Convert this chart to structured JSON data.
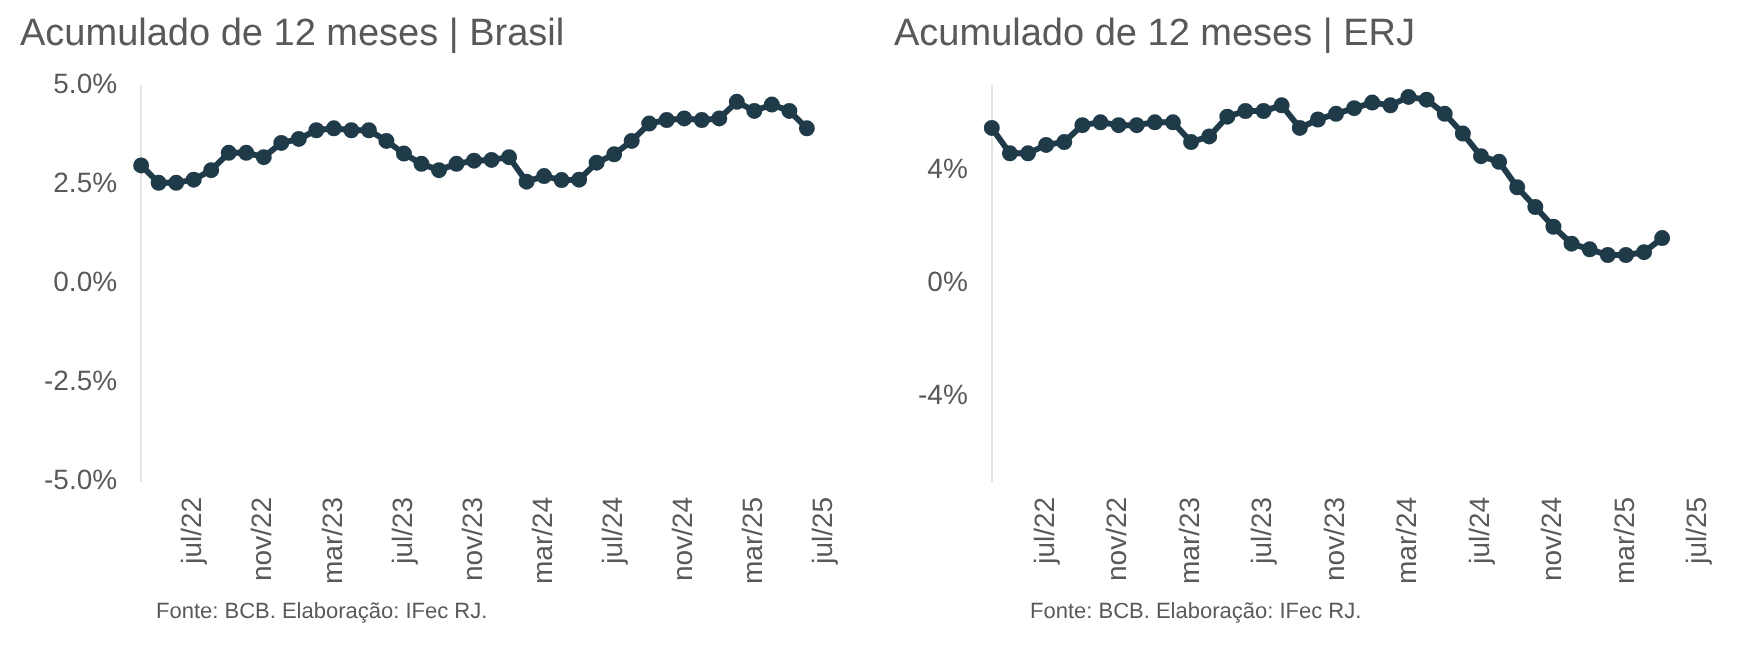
{
  "chart_data": [
    {
      "type": "line",
      "title": "Acumulado de 12 meses | Brasil",
      "categories": [
        null,
        null,
        null,
        "jul/22",
        null,
        null,
        null,
        "nov/22",
        null,
        null,
        null,
        "mar/23",
        null,
        null,
        null,
        "jul/23",
        null,
        null,
        null,
        "nov/23",
        null,
        null,
        null,
        "mar/24",
        null,
        null,
        null,
        "jul/24",
        null,
        null,
        null,
        "nov/24",
        null,
        null,
        null,
        "mar/25",
        null,
        null,
        null,
        "jul/25"
      ],
      "series": [
        {
          "color": "#1f3a48",
          "values": [
            2.98,
            2.54,
            2.54,
            2.62,
            2.86,
            3.3,
            3.3,
            3.19,
            3.55,
            3.65,
            3.87,
            3.92,
            3.87,
            3.87,
            3.6,
            3.28,
            3.02,
            2.86,
            3.02,
            3.1,
            3.12,
            3.19,
            2.57,
            2.71,
            2.61,
            2.62,
            3.05,
            3.26,
            3.6,
            4.04,
            4.13,
            4.17,
            4.13,
            4.17,
            4.59,
            4.36,
            4.52,
            4.36,
            3.92,
            null
          ]
        }
      ],
      "ylim": [
        -5,
        5
      ],
      "yticks": [
        {
          "value": -5,
          "label": "-5.0%"
        },
        {
          "value": -2.5,
          "label": "-2.5%"
        },
        {
          "value": 0,
          "label": "0.0%"
        },
        {
          "value": 2.5,
          "label": "2.5%"
        },
        {
          "value": 5,
          "label": "5.0%"
        }
      ],
      "grid": false,
      "legend": false,
      "marker": "circle",
      "line_style": "solid",
      "annotations": [
        "Fonte: BCB. Elaboração: IFec RJ."
      ]
    },
    {
      "type": "line",
      "title": "Acumulado de 12 meses | ERJ",
      "categories": [
        null,
        null,
        null,
        "jul/22",
        null,
        null,
        null,
        "nov/22",
        null,
        null,
        null,
        "mar/23",
        null,
        null,
        null,
        "jul/23",
        null,
        null,
        null,
        "nov/23",
        null,
        null,
        null,
        "mar/24",
        null,
        null,
        null,
        "jul/24",
        null,
        null,
        null,
        "nov/24",
        null,
        null,
        null,
        "mar/25",
        null,
        null,
        null,
        "jul/25"
      ],
      "series": [
        {
          "color": "#1f3a48",
          "values": [
            5.5,
            4.6,
            4.6,
            4.9,
            5.0,
            5.6,
            5.7,
            5.6,
            5.6,
            5.7,
            5.7,
            5.0,
            5.2,
            5.9,
            6.1,
            6.1,
            6.3,
            5.5,
            5.8,
            6.0,
            6.2,
            6.4,
            6.3,
            6.6,
            6.5,
            6.0,
            5.3,
            4.5,
            4.3,
            3.4,
            2.7,
            2.0,
            1.4,
            1.2,
            1.0,
            1.0,
            1.1,
            1.6,
            null,
            null
          ]
        }
      ],
      "ylim": [
        -7,
        7
      ],
      "yticks": [
        {
          "value": -4,
          "label": "-4%"
        },
        {
          "value": 0,
          "label": "0%"
        },
        {
          "value": 4,
          "label": "4%"
        }
      ],
      "grid": false,
      "legend": false,
      "marker": "circle",
      "line_style": "solid",
      "annotations": [
        "Fonte: BCB. Elaboração: IFec RJ."
      ]
    }
  ]
}
